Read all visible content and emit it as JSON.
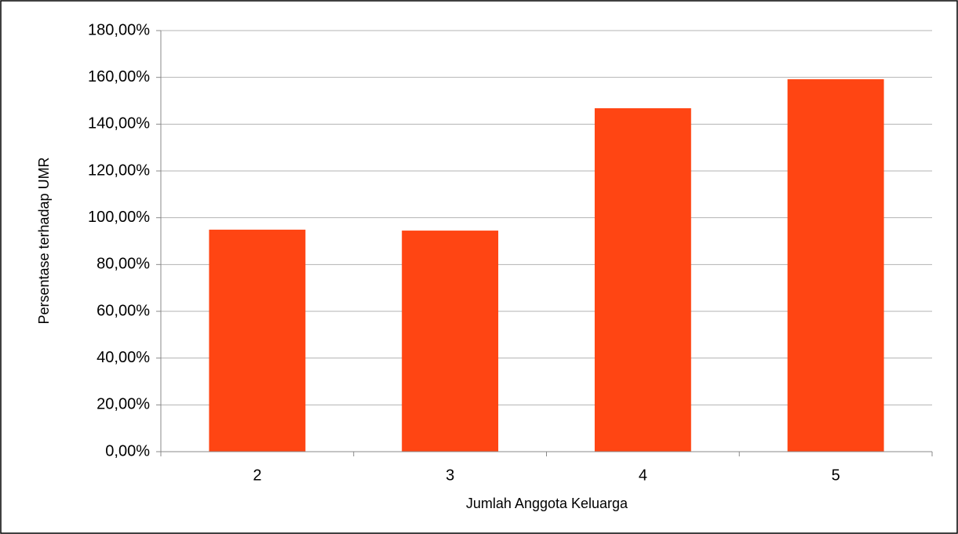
{
  "chart_data": {
    "type": "bar",
    "x_label": "Jumlah Anggota Keluarga",
    "y_label": "Persentase terhadap UMR",
    "categories": [
      "2",
      "3",
      "4",
      "5"
    ],
    "values": [
      94.9,
      94.5,
      146.8,
      159.2
    ],
    "color": "#ff4513",
    "ylim": [
      0,
      180
    ],
    "yticks": [
      {
        "value": 0,
        "label": "0,00%"
      },
      {
        "value": 20,
        "label": "20,00%"
      },
      {
        "value": 40,
        "label": "40,00%"
      },
      {
        "value": 60,
        "label": "60,00%"
      },
      {
        "value": 80,
        "label": "80,00%"
      },
      {
        "value": 100,
        "label": "100,00%"
      },
      {
        "value": 120,
        "label": "120,00%"
      },
      {
        "value": 140,
        "label": "140,00%"
      },
      {
        "value": 160,
        "label": "160,00%"
      },
      {
        "value": 180,
        "label": "180,00%"
      }
    ],
    "grid": true
  }
}
